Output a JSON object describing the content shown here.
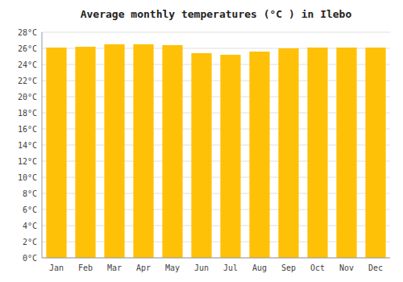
{
  "chart_data": {
    "type": "bar",
    "title": "Average monthly temperatures (°C ) in Ilebo",
    "categories": [
      "Jan",
      "Feb",
      "Mar",
      "Apr",
      "May",
      "Jun",
      "Jul",
      "Aug",
      "Sep",
      "Oct",
      "Nov",
      "Dec"
    ],
    "values": [
      26.1,
      26.2,
      26.5,
      26.5,
      26.4,
      25.4,
      25.2,
      25.6,
      26.0,
      26.1,
      26.1,
      26.1
    ],
    "color": "#FFC107",
    "ylim": [
      0,
      28
    ],
    "yticks": [
      {
        "value": 0,
        "label": "0°C"
      },
      {
        "value": 2,
        "label": "2°C"
      },
      {
        "value": 4,
        "label": "4°C"
      },
      {
        "value": 6,
        "label": "6°C"
      },
      {
        "value": 8,
        "label": "8°C"
      },
      {
        "value": 10,
        "label": "10°C"
      },
      {
        "value": 12,
        "label": "12°C"
      },
      {
        "value": 14,
        "label": "14°C"
      },
      {
        "value": 16,
        "label": "16°C"
      },
      {
        "value": 18,
        "label": "18°C"
      },
      {
        "value": 20,
        "label": "20°C"
      },
      {
        "value": 22,
        "label": "22°C"
      },
      {
        "value": 24,
        "label": "24°C"
      },
      {
        "value": 26,
        "label": "26°C"
      },
      {
        "value": 28,
        "label": "28°C"
      }
    ],
    "grid": true
  }
}
